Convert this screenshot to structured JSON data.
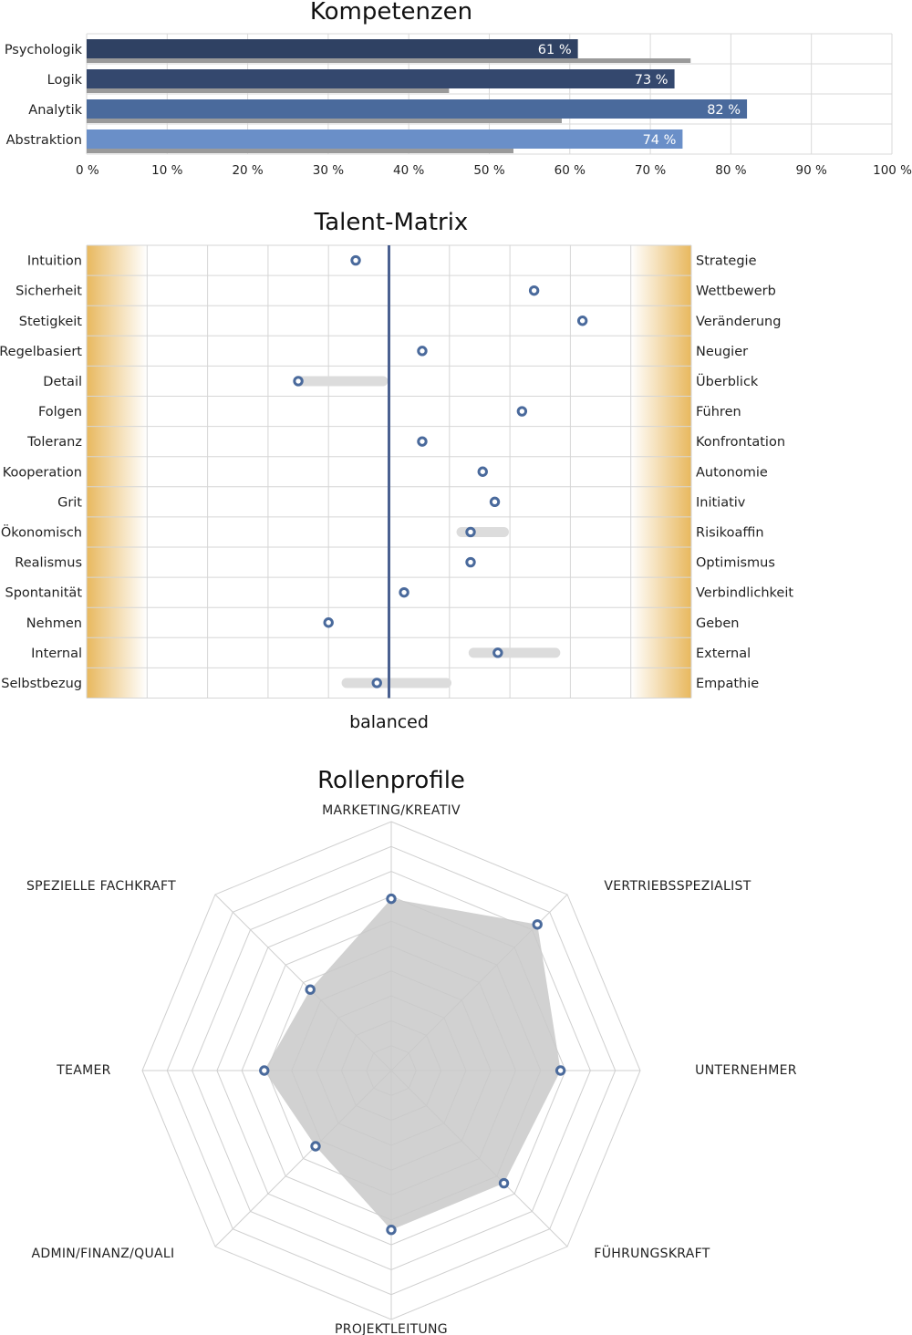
{
  "chart_data": [
    {
      "type": "bar",
      "title": "Kompetenzen",
      "orientation": "horizontal",
      "categories": [
        "Psychologik",
        "Logik",
        "Analytik",
        "Abstraktion"
      ],
      "series": [
        {
          "values": [
            61,
            73,
            82,
            74
          ],
          "labels": [
            "61 %",
            "73 %",
            "82 %",
            "74 %"
          ],
          "colors": [
            "#2f4163",
            "#34486e",
            "#4a6a9c",
            "#6a8fc8"
          ]
        },
        {
          "values": [
            75,
            45,
            59,
            53
          ],
          "color": "#9a9a9a"
        }
      ],
      "xlim": [
        0,
        100
      ],
      "xticks": [
        "0 %",
        "10 %",
        "20 %",
        "30 %",
        "40 %",
        "50 %",
        "60 %",
        "70 %",
        "80 %",
        "90 %",
        "100 %"
      ],
      "grid": true
    },
    {
      "type": "scatter",
      "title": "Talent-Matrix",
      "xlabel": "balanced",
      "left_labels": [
        "Intuition",
        "Sicherheit",
        "Stetigkeit",
        "Regelbasiert",
        "Detail",
        "Folgen",
        "Toleranz",
        "Kooperation",
        "Grit",
        "Ökonomisch",
        "Realismus",
        "Spontanität",
        "Nehmen",
        "Internal",
        "Selbstbezug"
      ],
      "right_labels": [
        "Strategie",
        "Wettbewerb",
        "Veränderung",
        "Neugier",
        "Überblick",
        "Führen",
        "Konfrontation",
        "Autonomie",
        "Initiativ",
        "Risikoaffin",
        "Optimismus",
        "Verbindlichkeit",
        "Geben",
        "External",
        "Empathie"
      ],
      "values": [
        -0.11,
        0.48,
        0.64,
        0.11,
        -0.3,
        0.44,
        0.11,
        0.31,
        0.35,
        0.27,
        0.27,
        0.05,
        -0.2,
        0.36,
        -0.04
      ],
      "ranges": [
        null,
        null,
        null,
        null,
        [
          -0.3,
          -0.02
        ],
        null,
        null,
        null,
        null,
        [
          0.24,
          0.38
        ],
        null,
        null,
        null,
        [
          0.28,
          0.55
        ],
        [
          -0.14,
          0.19
        ]
      ],
      "xlim": [
        -1,
        1
      ],
      "center_line": 0,
      "dot_color": "#4a6a9c",
      "range_color": "#dcdcdc",
      "edge_color": "#e8b85e"
    },
    {
      "type": "radar",
      "title": "Rollenprofile",
      "axes": [
        "MARKETING/KREATIV",
        "VERTRIEBSSPEZIALIST",
        "UNTERNEHMER",
        "FÜHRUNGSKRAFT",
        "PROJEKTLEITUNG",
        "ADMIN/FINANZ/QUALI",
        "TEAMER",
        "SPEZIELLE FACHKRAFT"
      ],
      "values": [
        0.69,
        0.83,
        0.68,
        0.64,
        0.64,
        0.43,
        0.51,
        0.46
      ],
      "rmax": 1,
      "rings": 10,
      "fill": "#c9c9c9",
      "point_color": "#4a6a9c"
    }
  ]
}
